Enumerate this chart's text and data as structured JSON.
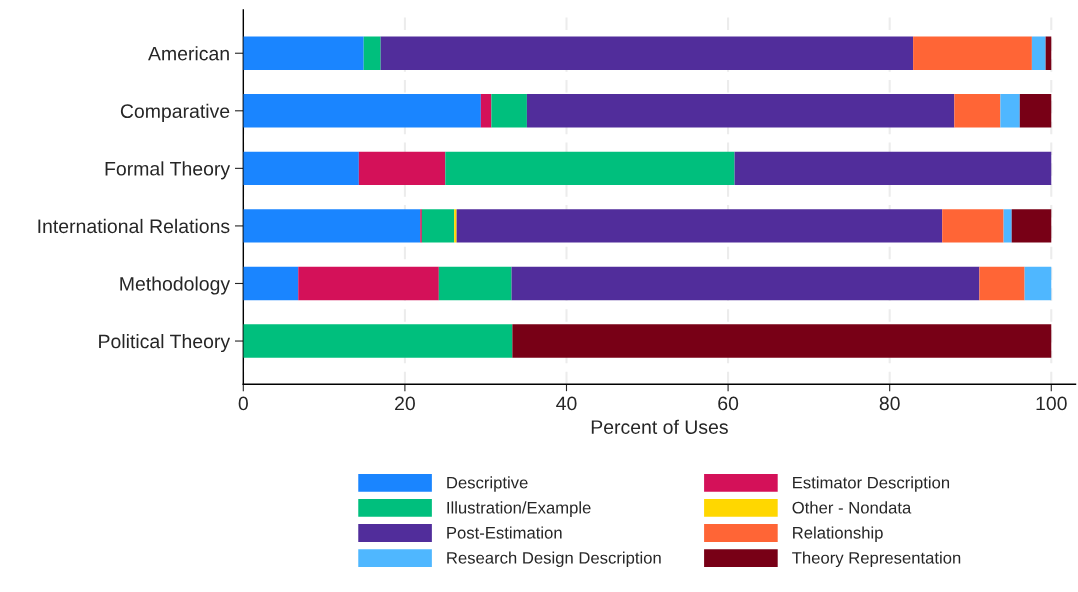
{
  "chart_data": {
    "type": "bar",
    "orientation": "horizontal",
    "stacked": true,
    "xlabel": "Percent of Uses",
    "categories": [
      "American",
      "Comparative",
      "Formal Theory",
      "International Relations",
      "Methodology",
      "Political Theory"
    ],
    "series": [
      {
        "name": "Descriptive",
        "color": "#1a85ff",
        "values": [
          14.9,
          29.4,
          14.3,
          21.9,
          6.8,
          0
        ]
      },
      {
        "name": "Estimator Description",
        "color": "#d41159",
        "values": [
          0,
          1.3,
          10.7,
          0.2,
          17.4,
          0
        ]
      },
      {
        "name": "Illustration/Example",
        "color": "#00bf7d",
        "values": [
          2.1,
          4.4,
          35.8,
          4.0,
          9.0,
          33.3
        ]
      },
      {
        "name": "Other - Nondata",
        "color": "#ffd700",
        "values": [
          0,
          0,
          0,
          0.3,
          0,
          0
        ]
      },
      {
        "name": "Post-Estimation",
        "color": "#512d9b",
        "values": [
          65.9,
          52.9,
          39.2,
          60.1,
          57.9,
          0
        ]
      },
      {
        "name": "Relationship",
        "color": "#ff6536",
        "values": [
          14.7,
          5.7,
          0,
          7.6,
          5.6,
          0
        ]
      },
      {
        "name": "Research Design Description",
        "color": "#4fb7ff",
        "values": [
          1.7,
          2.4,
          0,
          1.0,
          3.3,
          0
        ]
      },
      {
        "name": "Theory Representation",
        "color": "#780016",
        "values": [
          0.7,
          3.9,
          0,
          4.9,
          0,
          66.7
        ]
      }
    ],
    "xlim": [
      0,
      103
    ],
    "xticks": [
      0,
      20,
      40,
      60,
      80,
      100
    ],
    "grid": "x",
    "legend": "bottom"
  }
}
